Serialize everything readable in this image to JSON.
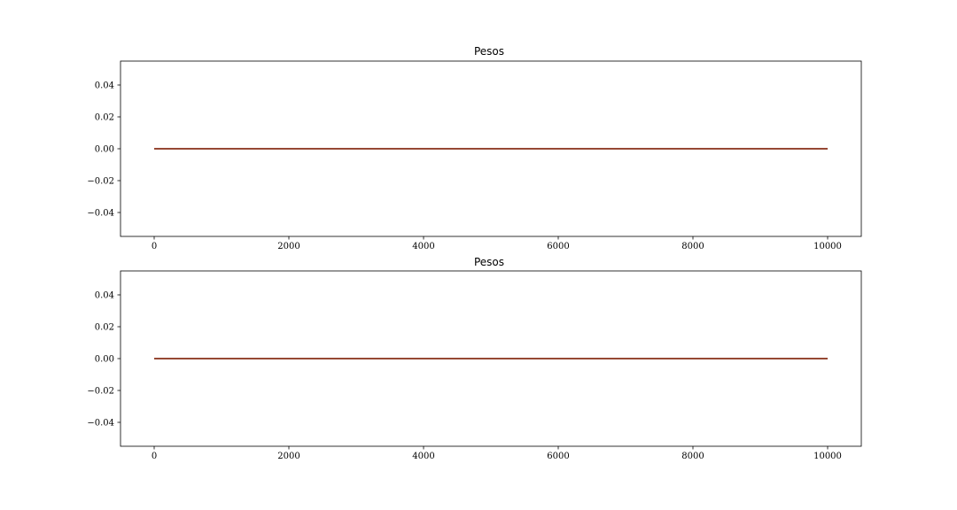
{
  "chart_data": [
    {
      "type": "line",
      "title": "Pesos",
      "xlabel": "",
      "ylabel": "",
      "xlim": [
        -500,
        10500
      ],
      "ylim": [
        -0.055,
        0.055
      ],
      "x_ticks": [
        0,
        2000,
        4000,
        6000,
        8000,
        10000
      ],
      "x_tick_labels": [
        "0",
        "2000",
        "4000",
        "6000",
        "8000",
        "10000"
      ],
      "y_ticks": [
        0.04,
        0.02,
        0.0,
        -0.02,
        -0.04
      ],
      "y_tick_labels": [
        "0.04",
        "0.02",
        "0.00",
        "−0.02",
        "−0.04"
      ],
      "grid": false,
      "series": [
        {
          "x": [
            0,
            10000
          ],
          "y": [
            0.0,
            0.0
          ],
          "color": "#1f77b4"
        },
        {
          "x": [
            0,
            10000
          ],
          "y": [
            0.0,
            0.0
          ],
          "color": "#d62728"
        },
        {
          "x": [
            0,
            10000
          ],
          "y": [
            0.0,
            0.0
          ],
          "color": "#8c3a1a"
        }
      ]
    },
    {
      "type": "line",
      "title": "Pesos",
      "xlabel": "",
      "ylabel": "",
      "xlim": [
        -500,
        10500
      ],
      "ylim": [
        -0.055,
        0.055
      ],
      "x_ticks": [
        0,
        2000,
        4000,
        6000,
        8000,
        10000
      ],
      "x_tick_labels": [
        "0",
        "2000",
        "4000",
        "6000",
        "8000",
        "10000"
      ],
      "y_ticks": [
        0.04,
        0.02,
        0.0,
        -0.02,
        -0.04
      ],
      "y_tick_labels": [
        "0.04",
        "0.02",
        "0.00",
        "−0.02",
        "−0.04"
      ],
      "grid": false,
      "series": [
        {
          "x": [
            0,
            10000
          ],
          "y": [
            0.0,
            0.0
          ],
          "color": "#1f77b4"
        },
        {
          "x": [
            0,
            10000
          ],
          "y": [
            0.0,
            0.0
          ],
          "color": "#d62728"
        },
        {
          "x": [
            0,
            10000
          ],
          "y": [
            0.0,
            0.0
          ],
          "color": "#8c3a1a"
        }
      ]
    }
  ]
}
